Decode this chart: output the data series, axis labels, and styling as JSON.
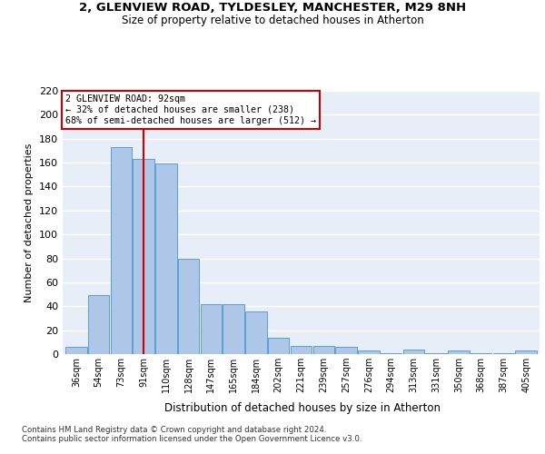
{
  "title1": "2, GLENVIEW ROAD, TYLDESLEY, MANCHESTER, M29 8NH",
  "title2": "Size of property relative to detached houses in Atherton",
  "xlabel": "Distribution of detached houses by size in Atherton",
  "ylabel": "Number of detached properties",
  "categories": [
    "36sqm",
    "54sqm",
    "73sqm",
    "91sqm",
    "110sqm",
    "128sqm",
    "147sqm",
    "165sqm",
    "184sqm",
    "202sqm",
    "221sqm",
    "239sqm",
    "257sqm",
    "276sqm",
    "294sqm",
    "313sqm",
    "331sqm",
    "350sqm",
    "368sqm",
    "387sqm",
    "405sqm"
  ],
  "values": [
    6,
    49,
    173,
    163,
    159,
    80,
    42,
    42,
    36,
    14,
    7,
    7,
    6,
    3,
    1,
    4,
    1,
    3,
    1,
    1,
    3
  ],
  "bar_color": "#aec6e8",
  "bar_edge_color": "#5a9fd4",
  "background_color": "#e8eef8",
  "grid_color": "#ffffff",
  "annotation_text": "2 GLENVIEW ROAD: 92sqm\n← 32% of detached houses are smaller (238)\n68% of semi-detached houses are larger (512) →",
  "annotation_box_color": "#ffffff",
  "annotation_box_edge_color": "#cc0000",
  "vline_x": 3,
  "vline_color": "#cc0000",
  "ylim": [
    0,
    220
  ],
  "yticks": [
    0,
    20,
    40,
    60,
    80,
    100,
    120,
    140,
    160,
    180,
    200,
    220
  ],
  "footer1": "Contains HM Land Registry data © Crown copyright and database right 2024.",
  "footer2": "Contains public sector information licensed under the Open Government Licence v3.0."
}
